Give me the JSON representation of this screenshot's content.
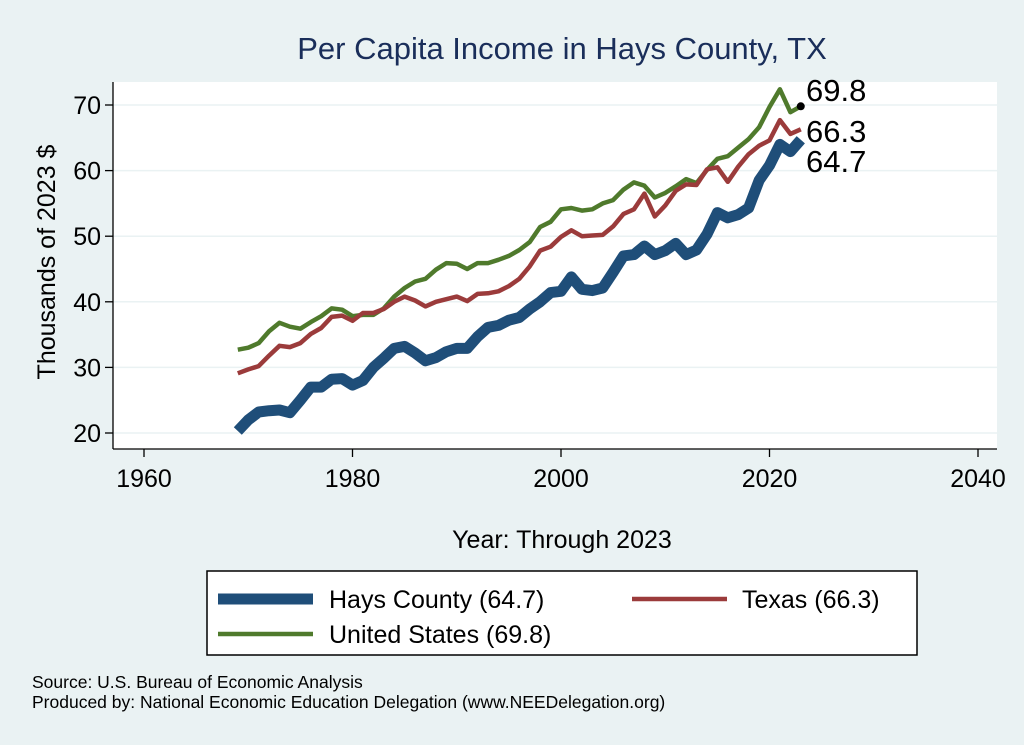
{
  "chart_data": {
    "type": "line",
    "title": "Per Capita Income in Hays County, TX",
    "xlabel": "Year: Through 2023",
    "ylabel": "Thousands of 2023 $",
    "xlim": [
      1960,
      2040
    ],
    "ylim": [
      20,
      70
    ],
    "x_ticks": [
      1960,
      1980,
      2000,
      2020,
      2040
    ],
    "y_ticks": [
      20,
      30,
      40,
      50,
      60,
      70
    ],
    "grid": true,
    "legend_position": "bottom",
    "series": [
      {
        "name": "Hays County (64.7)",
        "color": "#1f4e79",
        "x": [
          1969,
          1970,
          1971,
          1972,
          1973,
          1974,
          1975,
          1976,
          1977,
          1978,
          1979,
          1980,
          1981,
          1982,
          1983,
          1984,
          1985,
          1986,
          1987,
          1988,
          1989,
          1990,
          1991,
          1992,
          1993,
          1994,
          1995,
          1996,
          1997,
          1998,
          1999,
          2000,
          2001,
          2002,
          2003,
          2004,
          2005,
          2006,
          2007,
          2008,
          2009,
          2010,
          2011,
          2012,
          2013,
          2014,
          2015,
          2016,
          2017,
          2018,
          2019,
          2020,
          2021,
          2022,
          2023
        ],
        "values": [
          20.3,
          22.0,
          23.2,
          23.4,
          23.5,
          23.1,
          25.0,
          27.0,
          27.0,
          28.2,
          28.3,
          27.3,
          28.0,
          30.0,
          31.4,
          32.9,
          33.2,
          32.2,
          31.0,
          31.5,
          32.4,
          32.9,
          32.9,
          34.7,
          36.1,
          36.4,
          37.2,
          37.6,
          38.9,
          40.0,
          41.4,
          41.6,
          43.8,
          41.9,
          41.7,
          42.1,
          44.5,
          47.0,
          47.2,
          48.5,
          47.2,
          47.8,
          48.9,
          47.2,
          47.9,
          50.3,
          53.6,
          52.8,
          53.3,
          54.3,
          58.5,
          60.8,
          64.0,
          62.9,
          64.7
        ]
      },
      {
        "name": "Texas (66.3)",
        "color": "#9b3b3b",
        "x": [
          1969,
          1970,
          1971,
          1972,
          1973,
          1974,
          1975,
          1976,
          1977,
          1978,
          1979,
          1980,
          1981,
          1982,
          1983,
          1984,
          1985,
          1986,
          1987,
          1988,
          1989,
          1990,
          1991,
          1992,
          1993,
          1994,
          1995,
          1996,
          1997,
          1998,
          1999,
          2000,
          2001,
          2002,
          2003,
          2004,
          2005,
          2006,
          2007,
          2008,
          2009,
          2010,
          2011,
          2012,
          2013,
          2014,
          2015,
          2016,
          2017,
          2018,
          2019,
          2020,
          2021,
          2022,
          2023
        ],
        "values": [
          29.1,
          29.7,
          30.2,
          31.8,
          33.3,
          33.1,
          33.7,
          35.1,
          36.0,
          37.7,
          37.9,
          37.1,
          38.3,
          38.3,
          38.9,
          40.0,
          40.8,
          40.2,
          39.3,
          40.0,
          40.4,
          40.8,
          40.1,
          41.2,
          41.3,
          41.6,
          42.4,
          43.5,
          45.4,
          47.8,
          48.4,
          49.9,
          50.9,
          50.0,
          50.1,
          50.2,
          51.5,
          53.4,
          54.1,
          56.5,
          53.0,
          54.7,
          56.9,
          57.9,
          57.8,
          60.2,
          60.5,
          58.3,
          60.6,
          62.5,
          63.8,
          64.6,
          67.7,
          65.6,
          66.3
        ]
      },
      {
        "name": "United States (69.8)",
        "color": "#4f7a2c",
        "x": [
          1969,
          1970,
          1971,
          1972,
          1973,
          1974,
          1975,
          1976,
          1977,
          1978,
          1979,
          1980,
          1981,
          1982,
          1983,
          1984,
          1985,
          1986,
          1987,
          1988,
          1989,
          1990,
          1991,
          1992,
          1993,
          1994,
          1995,
          1996,
          1997,
          1998,
          1999,
          2000,
          2001,
          2002,
          2003,
          2004,
          2005,
          2006,
          2007,
          2008,
          2009,
          2010,
          2011,
          2012,
          2013,
          2014,
          2015,
          2016,
          2017,
          2018,
          2019,
          2020,
          2021,
          2022,
          2023
        ],
        "values": [
          32.7,
          33.0,
          33.7,
          35.5,
          36.8,
          36.2,
          35.9,
          36.9,
          37.8,
          39.0,
          38.8,
          37.8,
          38.0,
          38.0,
          39.0,
          40.8,
          42.1,
          43.1,
          43.5,
          44.9,
          45.9,
          45.8,
          45.0,
          45.9,
          45.9,
          46.4,
          47.0,
          47.9,
          49.1,
          51.4,
          52.2,
          54.1,
          54.3,
          53.9,
          54.1,
          55.0,
          55.5,
          57.1,
          58.2,
          57.7,
          55.9,
          56.6,
          57.6,
          58.7,
          58.1,
          60.1,
          61.8,
          62.2,
          63.5,
          64.8,
          66.6,
          69.7,
          72.4,
          68.9,
          69.8
        ]
      }
    ],
    "end_labels": [
      "69.8",
      "66.3",
      "64.7"
    ]
  },
  "notes": {
    "source": "Source: U.S. Bureau of Economic Analysis",
    "produced": "Produced by: National Economic Education Delegation (www.NEEDelegation.org)"
  }
}
